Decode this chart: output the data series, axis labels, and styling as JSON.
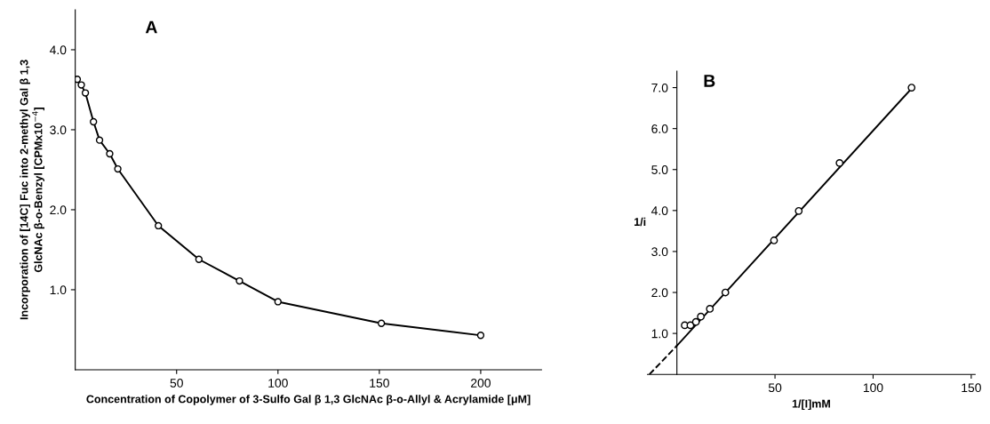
{
  "chart_data": [
    {
      "type": "line",
      "title": "A",
      "xlabel": "Concentration of Copolymer of 3-Sulfo Gal β 1,3 GlcNAc β-o-Allyl & Acrylamide [μM]",
      "ylabel": "Incorporation of [14C] Fuc into 2-methyl Gal β 1,3\nGlcNAc β-o-Benzyl [CPMx10$^{−4}$]",
      "x": [
        1,
        3,
        5,
        9,
        12,
        17,
        21,
        41,
        61,
        81,
        100,
        151,
        200
      ],
      "series": [
        {
          "color": "#000000",
          "values": [
            3.63,
            3.56,
            3.46,
            3.1,
            2.87,
            2.7,
            2.51,
            1.8,
            1.38,
            1.11,
            0.85,
            0.58,
            0.43
          ]
        }
      ],
      "xlim": [
        0,
        230
      ],
      "ylim": [
        0,
        4.5
      ],
      "xticks": [
        50,
        100,
        150,
        200
      ],
      "yticks": [
        {
          "value": 1,
          "label": "1.0"
        },
        {
          "value": 2,
          "label": "2.0"
        },
        {
          "value": 3,
          "label": "3.0"
        },
        {
          "value": 4,
          "label": "4.0"
        }
      ],
      "marker": "circle",
      "line_style": "solid",
      "grid": false,
      "legend": false
    },
    {
      "type": "scatter",
      "title": "B",
      "xlabel": "1/[I]mM",
      "ylabel": "1/i",
      "x": [
        4.0,
        6.9,
        9.7,
        12.2,
        16.8,
        24.7,
        49.5,
        62.1,
        82.9,
        119.6
      ],
      "series": [
        {
          "type": "scatter",
          "marker": "circle",
          "color": "#000000",
          "values": [
            1.2,
            1.2,
            1.28,
            1.41,
            1.6,
            2.0,
            3.27,
            3.99,
            5.16,
            7.0
          ]
        },
        {
          "type": "line",
          "color": "#000000",
          "x": [
            0,
            120
          ],
          "values": [
            0.7,
            7.0
          ],
          "line_style": "solid",
          "marker": "none"
        },
        {
          "type": "line",
          "color": "#000000",
          "x": [
            -14,
            0
          ],
          "values": [
            0,
            0.7
          ],
          "line_style": "dashed",
          "marker": "none"
        }
      ],
      "xlim": [
        -15,
        152
      ],
      "ylim": [
        0,
        7.4
      ],
      "xticks": [
        50,
        100,
        150
      ],
      "yticks": [
        {
          "value": 1,
          "label": "1.0"
        },
        {
          "value": 2,
          "label": "2.0"
        },
        {
          "value": 3,
          "label": "3.0"
        },
        {
          "value": 4,
          "label": "4.0"
        },
        {
          "value": 5,
          "label": "5.0"
        },
        {
          "value": 6,
          "label": "6.0"
        },
        {
          "value": 7,
          "label": "7.0"
        }
      ],
      "grid": false,
      "legend": false
    }
  ]
}
